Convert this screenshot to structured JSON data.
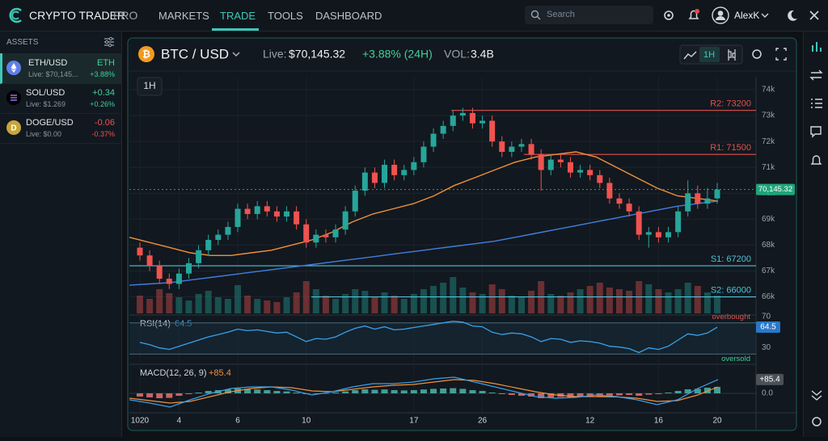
{
  "nav": {
    "brand": "CRYPTO TRADER",
    "brand_suffix": "PRO",
    "menu": [
      "MARKETS",
      "TRADE",
      "TOOLS",
      "DASHBOARD"
    ],
    "search": "Search",
    "user": "AlexK"
  },
  "sidebar": {
    "title": "ASSETS",
    "assets": [
      {
        "pair": "ETH/USD",
        "value": "ETH",
        "live": "Live: $70,145...",
        "change": "+3.88%"
      },
      {
        "pair": "SOL/USD",
        "value": "+0.34",
        "live": "Live: $1.269",
        "change": "+0.26%"
      },
      {
        "pair": "DOGE/USD",
        "value": "-0.06",
        "live": "Live: $0.00",
        "change": "-0.37%"
      }
    ]
  },
  "chart_data": {
    "type": "candlestick",
    "symbol": "BTC / USD",
    "live_label": "Live:",
    "live_price": "$70,145.32",
    "change": "+3.88% (24H)",
    "vol_label": "VOL:",
    "volume_total": "3.4B",
    "interval": "1H",
    "toolbar_interval": "1H",
    "up_color": "#26a69a",
    "down_color": "#ef5350",
    "grid": true,
    "ylim": [
      65300,
      74500
    ],
    "yticks": [
      {
        "value": 74000,
        "label": "74k"
      },
      {
        "value": 73000,
        "label": "73k"
      },
      {
        "value": 72000,
        "label": "72k"
      },
      {
        "value": 71000,
        "label": "71k"
      },
      {
        "value": 70000,
        "label": "70k"
      },
      {
        "value": 69000,
        "label": "69k"
      },
      {
        "value": 68000,
        "label": "68k"
      },
      {
        "value": 67000,
        "label": "67k"
      },
      {
        "value": 66000,
        "label": "66k"
      }
    ],
    "price_badge": "70,145.32",
    "categories": [
      "1020",
      null,
      null,
      null,
      "4",
      null,
      null,
      null,
      null,
      null,
      "6",
      null,
      null,
      null,
      null,
      null,
      null,
      "10",
      null,
      null,
      null,
      null,
      null,
      null,
      null,
      null,
      null,
      null,
      "17",
      null,
      null,
      null,
      null,
      null,
      null,
      "26",
      null,
      null,
      null,
      null,
      null,
      null,
      null,
      null,
      null,
      null,
      "12",
      null,
      null,
      null,
      null,
      null,
      null,
      "16",
      null,
      null,
      null,
      null,
      null,
      "20"
    ],
    "candles": [
      [
        67900,
        68100,
        67400,
        67600
      ],
      [
        67600,
        67800,
        67000,
        67200
      ],
      [
        67200,
        67400,
        66500,
        66700
      ],
      [
        66700,
        66900,
        66300,
        66500
      ],
      [
        66500,
        67100,
        66300,
        66900
      ],
      [
        66900,
        67500,
        66700,
        67300
      ],
      [
        67300,
        68000,
        67100,
        67800
      ],
      [
        67800,
        68400,
        67600,
        68200
      ],
      [
        68200,
        68600,
        68000,
        68400
      ],
      [
        68400,
        68900,
        68200,
        68700
      ],
      [
        68700,
        69600,
        68500,
        69400
      ],
      [
        69400,
        69600,
        69000,
        69200
      ],
      [
        69200,
        69700,
        69000,
        69500
      ],
      [
        69500,
        69700,
        69100,
        69300
      ],
      [
        69300,
        69500,
        68900,
        69100
      ],
      [
        69100,
        69500,
        68900,
        69300
      ],
      [
        69300,
        69500,
        68600,
        68800
      ],
      [
        68800,
        69000,
        67900,
        68100
      ],
      [
        68100,
        68600,
        67900,
        68400
      ],
      [
        68400,
        68600,
        68100,
        68300
      ],
      [
        68300,
        68800,
        68100,
        68600
      ],
      [
        68600,
        69500,
        68400,
        69300
      ],
      [
        69300,
        70300,
        69100,
        70100
      ],
      [
        70100,
        71000,
        69900,
        70800
      ],
      [
        70800,
        71000,
        70200,
        70400
      ],
      [
        70400,
        71300,
        70200,
        71100
      ],
      [
        71100,
        71300,
        70500,
        70700
      ],
      [
        70700,
        71100,
        70500,
        70900
      ],
      [
        70900,
        71400,
        70700,
        71200
      ],
      [
        71200,
        72000,
        71000,
        71800
      ],
      [
        71800,
        72500,
        71600,
        72300
      ],
      [
        72300,
        72800,
        72100,
        72600
      ],
      [
        72600,
        73200,
        72400,
        73000
      ],
      [
        73000,
        73300,
        72800,
        73100
      ],
      [
        73100,
        73300,
        72500,
        72700
      ],
      [
        72700,
        73000,
        72500,
        72800
      ],
      [
        72800,
        73000,
        71800,
        72000
      ],
      [
        72000,
        72200,
        71400,
        71600
      ],
      [
        71600,
        72000,
        71400,
        71800
      ],
      [
        71800,
        72100,
        71600,
        71900
      ],
      [
        71900,
        72100,
        71300,
        71500
      ],
      [
        71500,
        71700,
        70100,
        70900
      ],
      [
        70900,
        71500,
        70700,
        71300
      ],
      [
        71300,
        71500,
        71000,
        71200
      ],
      [
        71200,
        71400,
        70600,
        70800
      ],
      [
        70800,
        71100,
        70600,
        70900
      ],
      [
        70900,
        71100,
        70500,
        70700
      ],
      [
        70700,
        70900,
        70200,
        70400
      ],
      [
        70400,
        70600,
        69600,
        69800
      ],
      [
        69800,
        70000,
        69400,
        69600
      ],
      [
        69600,
        69800,
        69100,
        69300
      ],
      [
        69300,
        69500,
        68200,
        68400
      ],
      [
        68400,
        68700,
        67900,
        68500
      ],
      [
        68500,
        68700,
        68100,
        68300
      ],
      [
        68300,
        68700,
        68100,
        68500
      ],
      [
        68500,
        69500,
        68300,
        69300
      ],
      [
        69300,
        70500,
        69100,
        70000
      ],
      [
        70000,
        70300,
        69400,
        69600
      ],
      [
        69600,
        70200,
        69400,
        69800
      ],
      [
        69800,
        70400,
        69600,
        70145.32
      ]
    ],
    "levels": [
      {
        "name": "R2: 73200",
        "value": 73200,
        "color": "#e0524f"
      },
      {
        "name": "R1: 71500",
        "value": 71500,
        "color": "#e0524f"
      },
      {
        "name": "S1: 67200",
        "value": 67200,
        "color": "#4fc3d9"
      },
      {
        "name": "S2: 66000",
        "value": 66000,
        "color": "#4fc3d9"
      }
    ],
    "moving_averages": [
      {
        "color": "#f0913a",
        "values": [
          68300,
          68100,
          67900,
          67700,
          67600,
          67600,
          67700,
          67800,
          68000,
          68200,
          68500,
          68900,
          69200,
          69400,
          69600,
          69900,
          70300,
          70600,
          70900,
          71200,
          71400,
          71500,
          71600,
          71400,
          71000,
          70600,
          70200,
          69900,
          69800,
          69700
        ]
      },
      {
        "color": "#3f7fe0",
        "values": [
          66450,
          66500,
          66550,
          66650,
          66750,
          66850,
          66950,
          67050,
          67150,
          67250,
          67350,
          67450,
          67550,
          67650,
          67750,
          67850,
          67950,
          68050,
          68150,
          68300,
          68450,
          68600,
          68750,
          68900,
          69050,
          69200,
          69350,
          69500,
          69600,
          69700
        ]
      }
    ],
    "volume": [
      22,
      18,
      30,
      25,
      20,
      16,
      24,
      28,
      20,
      18,
      35,
      22,
      18,
      16,
      14,
      20,
      26,
      40,
      30,
      22,
      18,
      24,
      30,
      28,
      20,
      26,
      22,
      18,
      24,
      30,
      34,
      38,
      45,
      32,
      26,
      24,
      36,
      30,
      22,
      20,
      28,
      40,
      24,
      22,
      26,
      30,
      34,
      38,
      32,
      30,
      28,
      40,
      36,
      30,
      26,
      30,
      38,
      34,
      26,
      22
    ],
    "rsi": {
      "label": "RSI(14)",
      "value_label": "64.5",
      "color": "#3aa0e8",
      "values": [
        45,
        42,
        38,
        36,
        40,
        44,
        48,
        52,
        55,
        58,
        62,
        60,
        61,
        59,
        57,
        58,
        52,
        46,
        50,
        49,
        52,
        58,
        63,
        66,
        62,
        65,
        61,
        62,
        64,
        66,
        68,
        70,
        72,
        71,
        66,
        65,
        58,
        55,
        57,
        56,
        52,
        46,
        50,
        49,
        45,
        47,
        46,
        44,
        40,
        39,
        37,
        32,
        38,
        36,
        40,
        48,
        56,
        54,
        57,
        64.5
      ],
      "ylim": [
        18,
        78
      ],
      "yticks": [
        70,
        30
      ],
      "overbought": {
        "label": "overbought",
        "value": 70
      },
      "oversold": {
        "label": "oversold",
        "value": 30
      }
    },
    "macd": {
      "label": "MACD(12, 26, 9)",
      "value_label": "+85.4",
      "line_color": "#3aa0e8",
      "signal_color": "#f0913a",
      "ylim": [
        -115,
        175
      ],
      "yticks": [
        {
          "value": 0,
          "label": "0.0"
        }
      ],
      "histogram": [
        -20,
        -25,
        -30,
        -28,
        -15,
        -5,
        5,
        15,
        20,
        25,
        30,
        28,
        24,
        20,
        15,
        12,
        5,
        -5,
        -2,
        0,
        5,
        12,
        20,
        25,
        22,
        24,
        20,
        18,
        20,
        24,
        28,
        30,
        32,
        28,
        20,
        15,
        5,
        -5,
        -10,
        -15,
        -20,
        -30,
        -25,
        -22,
        -25,
        -22,
        -20,
        -18,
        -15,
        -12,
        -10,
        -15,
        -8,
        -5,
        5,
        15,
        25,
        28,
        35,
        40
      ],
      "line": [
        -40,
        -60,
        -85,
        -40,
        0,
        30,
        40,
        40,
        20,
        -10,
        10,
        40,
        60,
        60,
        70,
        90,
        100,
        70,
        40,
        10,
        -20,
        -30,
        -25,
        -10,
        -20,
        -40,
        -70,
        -40,
        30,
        85.4
      ],
      "signal": [
        -30,
        -45,
        -60,
        -50,
        -20,
        10,
        30,
        40,
        35,
        15,
        10,
        25,
        40,
        50,
        55,
        70,
        85,
        80,
        60,
        35,
        10,
        -10,
        -20,
        -20,
        -22,
        -30,
        -50,
        -45,
        -10,
        40
      ]
    }
  }
}
